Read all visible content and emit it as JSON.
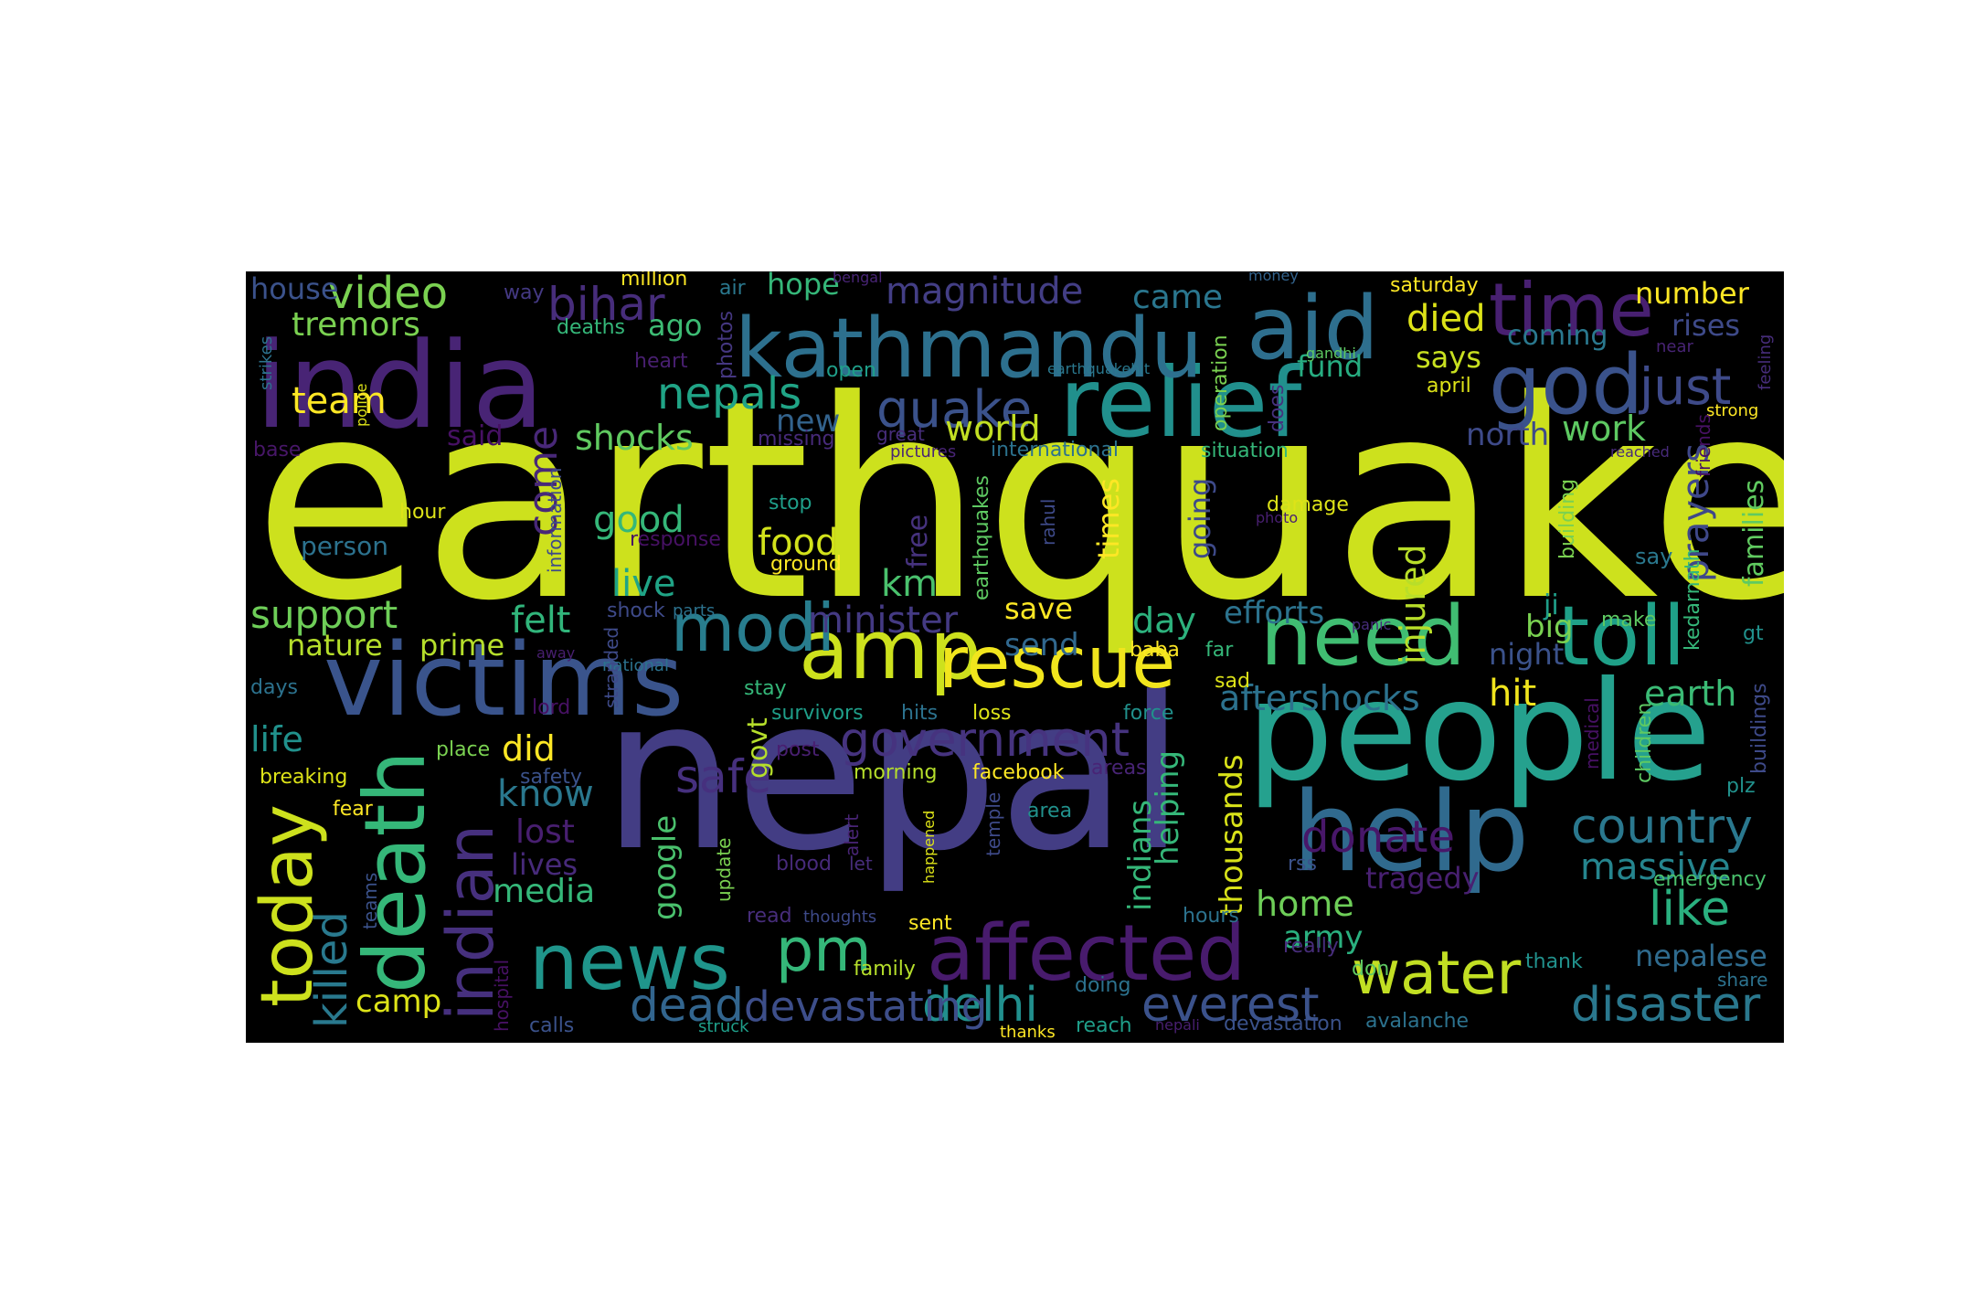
{
  "word_cloud": {
    "background": "#000000",
    "palette": [
      "#440154",
      "#482878",
      "#3e4989",
      "#31688e",
      "#26828e",
      "#1f9e89",
      "#35b779",
      "#6ece58",
      "#b5de2b",
      "#cde11d",
      "#fde725"
    ],
    "words": [
      {
        "text": "earthquake",
        "color": "#cde11d"
      },
      {
        "text": "nepal",
        "color": "#433d84"
      },
      {
        "text": "people",
        "color": "#25a18e"
      },
      {
        "text": "india",
        "color": "#482475"
      },
      {
        "text": "victims",
        "color": "#3a548c"
      },
      {
        "text": "relief",
        "color": "#21908d"
      },
      {
        "text": "kathmandu",
        "color": "#2d708e"
      },
      {
        "text": "help",
        "color": "#306a8e"
      },
      {
        "text": "need",
        "color": "#40bd72"
      },
      {
        "text": "toll",
        "color": "#1fa088"
      },
      {
        "text": "aid",
        "color": "#2e6f8e"
      },
      {
        "text": "time",
        "color": "#482071"
      },
      {
        "text": "god",
        "color": "#3a528b"
      },
      {
        "text": "news",
        "color": "#1f958b"
      },
      {
        "text": "affected",
        "color": "#481b6d"
      },
      {
        "text": "amp",
        "color": "#cde11d"
      },
      {
        "text": "rescue",
        "color": "#f1e51d"
      },
      {
        "text": "death",
        "color": "#35b779"
      },
      {
        "text": "indian",
        "color": "#46307e"
      },
      {
        "text": "today",
        "color": "#cde11d"
      },
      {
        "text": "modi",
        "color": "#287d8e"
      },
      {
        "text": "water",
        "color": "#c2df23"
      },
      {
        "text": "pm",
        "color": "#35b779"
      },
      {
        "text": "just",
        "color": "#3e4a89"
      },
      {
        "text": "quake",
        "color": "#3b528b"
      },
      {
        "text": "government",
        "color": "#46337f"
      },
      {
        "text": "disaster",
        "color": "#2a788e"
      },
      {
        "text": "country",
        "color": "#2a788e"
      },
      {
        "text": "like",
        "color": "#2ab07f"
      },
      {
        "text": "delhi",
        "color": "#218f8d"
      },
      {
        "text": "everest",
        "color": "#3b528b"
      },
      {
        "text": "devastating",
        "color": "#3d4e8a"
      },
      {
        "text": "dead",
        "color": "#32658e"
      },
      {
        "text": "safe",
        "color": "#46307e"
      },
      {
        "text": "donate",
        "color": "#481769"
      },
      {
        "text": "video",
        "color": "#7ad151"
      },
      {
        "text": "bihar",
        "color": "#472d7b"
      },
      {
        "text": "magnitude",
        "color": "#433e85"
      },
      {
        "text": "nepals",
        "color": "#20a486"
      },
      {
        "text": "support",
        "color": "#6ece58"
      },
      {
        "text": "aftershocks",
        "color": "#2c728e"
      },
      {
        "text": "earth",
        "color": "#3bbb75"
      },
      {
        "text": "killed",
        "color": "#29798e"
      },
      {
        "text": "massive",
        "color": "#25858e"
      },
      {
        "text": "minister",
        "color": "#443a83"
      },
      {
        "text": "injured",
        "color": "#b8de29"
      },
      {
        "text": "prayers",
        "color": "#3f4889"
      },
      {
        "text": "families",
        "color": "#60ca60"
      },
      {
        "text": "hit",
        "color": "#f1e51d"
      },
      {
        "text": "died",
        "color": "#dde318"
      },
      {
        "text": "food",
        "color": "#d2e21b"
      },
      {
        "text": "good",
        "color": "#35b779"
      },
      {
        "text": "live",
        "color": "#20a486"
      },
      {
        "text": "felt",
        "color": "#31b57b"
      },
      {
        "text": "tremors",
        "color": "#7ad151"
      },
      {
        "text": "house",
        "color": "#3b528b"
      },
      {
        "text": "team",
        "color": "#fde725"
      },
      {
        "text": "world",
        "color": "#c2df23"
      },
      {
        "text": "work",
        "color": "#5ec962"
      },
      {
        "text": "north",
        "color": "#3e4a89"
      },
      {
        "text": "shocks",
        "color": "#60ca60"
      },
      {
        "text": "come",
        "color": "#482878"
      },
      {
        "text": "new",
        "color": "#33638d"
      },
      {
        "text": "said",
        "color": "#471164"
      },
      {
        "text": "know",
        "color": "#2a788e"
      },
      {
        "text": "lost",
        "color": "#481f70"
      },
      {
        "text": "lives",
        "color": "#472a7a"
      },
      {
        "text": "media",
        "color": "#35b779"
      },
      {
        "text": "life",
        "color": "#21918c"
      },
      {
        "text": "did",
        "color": "#fde725"
      },
      {
        "text": "camp",
        "color": "#dde318"
      },
      {
        "text": "km",
        "color": "#4ac16d"
      },
      {
        "text": "day",
        "color": "#2db27d"
      },
      {
        "text": "efforts",
        "color": "#2c738e"
      },
      {
        "text": "big",
        "color": "#7ad151"
      },
      {
        "text": "night",
        "color": "#3b528b"
      },
      {
        "text": "send",
        "color": "#31688e"
      },
      {
        "text": "save",
        "color": "#fde725"
      },
      {
        "text": "fund",
        "color": "#27ad81"
      },
      {
        "text": "says",
        "color": "#c8e020"
      },
      {
        "text": "coming",
        "color": "#2a788e"
      },
      {
        "text": "number",
        "color": "#fde725"
      },
      {
        "text": "rises",
        "color": "#3e4a89"
      },
      {
        "text": "came",
        "color": "#2a768e"
      },
      {
        "text": "hope",
        "color": "#35b779"
      },
      {
        "text": "ago",
        "color": "#3dbc74"
      },
      {
        "text": "nature",
        "color": "#b5de2b"
      },
      {
        "text": "prime",
        "color": "#b5de2b"
      },
      {
        "text": "home",
        "color": "#6ece58"
      },
      {
        "text": "army",
        "color": "#2ab07f"
      },
      {
        "text": "tragedy",
        "color": "#482071"
      },
      {
        "text": "nepalese",
        "color": "#2f6b8e"
      },
      {
        "text": "google",
        "color": "#4ac16d"
      },
      {
        "text": "thousands",
        "color": "#d8e219"
      },
      {
        "text": "indians",
        "color": "#35b779"
      },
      {
        "text": "helping",
        "color": "#35b779"
      },
      {
        "text": "times",
        "color": "#fde725"
      },
      {
        "text": "going",
        "color": "#3e4a89"
      },
      {
        "text": "free",
        "color": "#46327e"
      },
      {
        "text": "govt",
        "color": "#b5de2b"
      },
      {
        "text": "ji",
        "color": "#1f9e89"
      },
      {
        "text": "million",
        "color": "#fde725"
      },
      {
        "text": "deaths",
        "color": "#35b779"
      },
      {
        "text": "heart",
        "color": "#481f70"
      },
      {
        "text": "photos",
        "color": "#453781"
      },
      {
        "text": "air",
        "color": "#2a788e"
      },
      {
        "text": "way",
        "color": "#443983"
      },
      {
        "text": "bengal",
        "color": "#482475"
      },
      {
        "text": "money",
        "color": "#33638d"
      },
      {
        "text": "saturday",
        "color": "#fde725"
      },
      {
        "text": "gandhi",
        "color": "#5ec962"
      },
      {
        "text": "operation",
        "color": "#7ad151"
      },
      {
        "text": "does",
        "color": "#46327e"
      },
      {
        "text": "april",
        "color": "#dde318"
      },
      {
        "text": "near",
        "color": "#482475"
      },
      {
        "text": "feeling",
        "color": "#472d7b"
      },
      {
        "text": "strong",
        "color": "#fde725"
      },
      {
        "text": "open",
        "color": "#1f9e89"
      },
      {
        "text": "earthquakehit",
        "color": "#2a788e"
      },
      {
        "text": "strikes",
        "color": "#2c728e"
      },
      {
        "text": "police",
        "color": "#dde318"
      },
      {
        "text": "base",
        "color": "#481769"
      },
      {
        "text": "missing",
        "color": "#472a7a"
      },
      {
        "text": "great",
        "color": "#472d7b"
      },
      {
        "text": "pictures",
        "color": "#482475"
      },
      {
        "text": "international",
        "color": "#2c728e"
      },
      {
        "text": "situation",
        "color": "#35b779"
      },
      {
        "text": "reached",
        "color": "#472a7a"
      },
      {
        "text": "friends",
        "color": "#471164"
      },
      {
        "text": "hour",
        "color": "#dde318"
      },
      {
        "text": "person",
        "color": "#2c728e"
      },
      {
        "text": "information",
        "color": "#3e4a89"
      },
      {
        "text": "response",
        "color": "#471164"
      },
      {
        "text": "stop",
        "color": "#1f9e89"
      },
      {
        "text": "ground",
        "color": "#fde725"
      },
      {
        "text": "rahul",
        "color": "#3e4a89"
      },
      {
        "text": "earthquakes",
        "color": "#5ec962"
      },
      {
        "text": "damage",
        "color": "#dde318"
      },
      {
        "text": "photo",
        "color": "#481f70"
      },
      {
        "text": "building",
        "color": "#7ad151"
      },
      {
        "text": "say",
        "color": "#2a788e"
      },
      {
        "text": "kedarnath",
        "color": "#35b779"
      },
      {
        "text": "gt",
        "color": "#21918c"
      },
      {
        "text": "make",
        "color": "#5ec962"
      },
      {
        "text": "panic",
        "color": "#472d7b"
      },
      {
        "text": "shock",
        "color": "#3e4a89"
      },
      {
        "text": "parts",
        "color": "#2c728e"
      },
      {
        "text": "away",
        "color": "#481f70"
      },
      {
        "text": "national",
        "color": "#2c728e"
      },
      {
        "text": "stranded",
        "color": "#3e4a89"
      },
      {
        "text": "baba",
        "color": "#fde725"
      },
      {
        "text": "far",
        "color": "#35b779"
      },
      {
        "text": "sad",
        "color": "#dde318"
      },
      {
        "text": "days",
        "color": "#2c728e"
      },
      {
        "text": "lord",
        "color": "#471164"
      },
      {
        "text": "stay",
        "color": "#35b779"
      },
      {
        "text": "survivors",
        "color": "#1f9e89"
      },
      {
        "text": "hits",
        "color": "#2c728e"
      },
      {
        "text": "loss",
        "color": "#dde318"
      },
      {
        "text": "force",
        "color": "#21918c"
      },
      {
        "text": "medical",
        "color": "#471164"
      },
      {
        "text": "children",
        "color": "#5ec962"
      },
      {
        "text": "buildings",
        "color": "#3e4a89"
      },
      {
        "text": "breaking",
        "color": "#dde318"
      },
      {
        "text": "place",
        "color": "#7ad151"
      },
      {
        "text": "safety",
        "color": "#3b528b"
      },
      {
        "text": "post",
        "color": "#481f70"
      },
      {
        "text": "morning",
        "color": "#b5de2b"
      },
      {
        "text": "facebook",
        "color": "#fde725"
      },
      {
        "text": "areas",
        "color": "#482475"
      },
      {
        "text": "fear",
        "color": "#fde725"
      },
      {
        "text": "temple",
        "color": "#3e4a89"
      },
      {
        "text": "area",
        "color": "#21918c"
      },
      {
        "text": "plz",
        "color": "#21918c"
      },
      {
        "text": "alert",
        "color": "#482475"
      },
      {
        "text": "let",
        "color": "#472d7b"
      },
      {
        "text": "blood",
        "color": "#472a7a"
      },
      {
        "text": "happened",
        "color": "#dde318"
      },
      {
        "text": "update",
        "color": "#7ad151"
      },
      {
        "text": "rss",
        "color": "#3b528b"
      },
      {
        "text": "emergency",
        "color": "#4ac16d"
      },
      {
        "text": "teams",
        "color": "#3b528b"
      },
      {
        "text": "read",
        "color": "#472d7b"
      },
      {
        "text": "thoughts",
        "color": "#3e4a89"
      },
      {
        "text": "sent",
        "color": "#fde725"
      },
      {
        "text": "hours",
        "color": "#2c728e"
      },
      {
        "text": "really",
        "color": "#472d7b"
      },
      {
        "text": "family",
        "color": "#b5de2b"
      },
      {
        "text": "thank",
        "color": "#21918c"
      },
      {
        "text": "share",
        "color": "#2c728e"
      },
      {
        "text": "hospital",
        "color": "#471164"
      },
      {
        "text": "don",
        "color": "#5ec962"
      },
      {
        "text": "doing",
        "color": "#2c728e"
      },
      {
        "text": "calls",
        "color": "#3b528b"
      },
      {
        "text": "struck",
        "color": "#1f9e89"
      },
      {
        "text": "thanks",
        "color": "#fde725"
      },
      {
        "text": "reach",
        "color": "#1f9e89"
      },
      {
        "text": "nepali",
        "color": "#481f70"
      },
      {
        "text": "devastation",
        "color": "#3b528b"
      },
      {
        "text": "avalanche",
        "color": "#2c728e"
      }
    ]
  }
}
